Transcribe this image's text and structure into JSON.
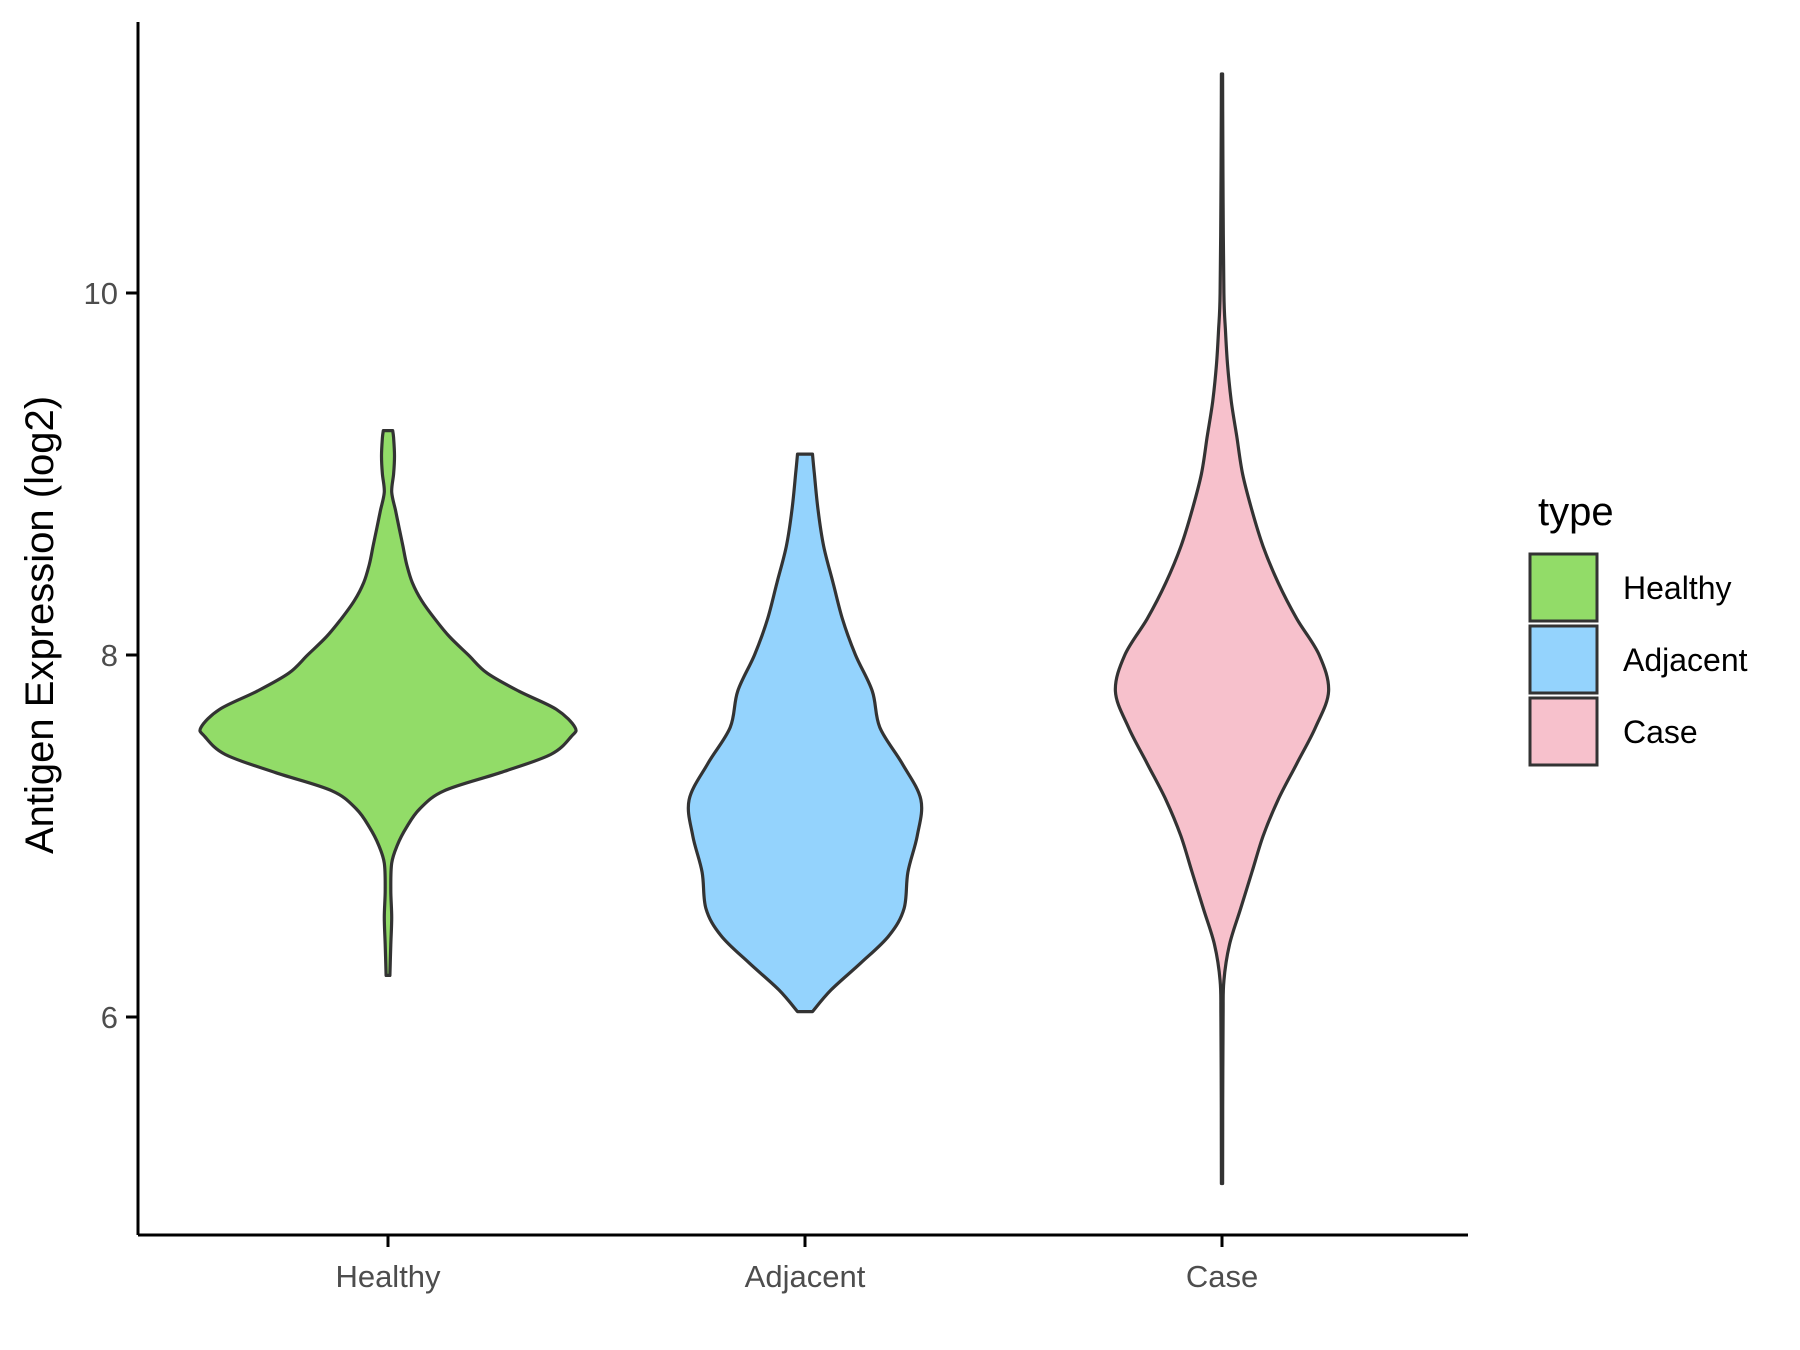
{
  "chart_data": {
    "type": "violin",
    "title": "",
    "xlabel": "",
    "ylabel": "Antigen Expression (log2)",
    "ylim": [
      5.0,
      11.4
    ],
    "yticks": [
      6,
      8,
      10
    ],
    "categories": [
      "Healthy",
      "Adjacent",
      "Case"
    ],
    "colors": {
      "Healthy": "#92dc68",
      "Adjacent": "#94d3fd",
      "Case": "#f7c1cc"
    },
    "legend": {
      "title": "type",
      "position": "right",
      "entries": [
        "Healthy",
        "Adjacent",
        "Case"
      ]
    },
    "grid": false,
    "series": [
      {
        "name": "Healthy",
        "min": 6.23,
        "max": 9.24,
        "density_profile": [
          [
            6.23,
            0.01
          ],
          [
            6.4,
            0.015
          ],
          [
            6.55,
            0.02
          ],
          [
            6.7,
            0.015
          ],
          [
            6.85,
            0.02
          ],
          [
            6.95,
            0.05
          ],
          [
            7.05,
            0.1
          ],
          [
            7.15,
            0.17
          ],
          [
            7.25,
            0.3
          ],
          [
            7.35,
            0.6
          ],
          [
            7.45,
            0.87
          ],
          [
            7.55,
            0.98
          ],
          [
            7.6,
            1.0
          ],
          [
            7.7,
            0.9
          ],
          [
            7.8,
            0.7
          ],
          [
            7.9,
            0.53
          ],
          [
            8.0,
            0.43
          ],
          [
            8.1,
            0.33
          ],
          [
            8.2,
            0.25
          ],
          [
            8.3,
            0.18
          ],
          [
            8.4,
            0.13
          ],
          [
            8.5,
            0.1
          ],
          [
            8.6,
            0.08
          ],
          [
            8.7,
            0.06
          ],
          [
            8.8,
            0.04
          ],
          [
            8.9,
            0.02
          ],
          [
            9.0,
            0.03
          ],
          [
            9.1,
            0.035
          ],
          [
            9.2,
            0.03
          ],
          [
            9.24,
            0.025
          ]
        ]
      },
      {
        "name": "Adjacent",
        "min": 6.03,
        "max": 9.11,
        "density_profile": [
          [
            6.03,
            0.04
          ],
          [
            6.15,
            0.14
          ],
          [
            6.3,
            0.3
          ],
          [
            6.45,
            0.45
          ],
          [
            6.6,
            0.53
          ],
          [
            6.8,
            0.55
          ],
          [
            7.0,
            0.6
          ],
          [
            7.2,
            0.62
          ],
          [
            7.4,
            0.52
          ],
          [
            7.6,
            0.4
          ],
          [
            7.8,
            0.36
          ],
          [
            8.0,
            0.27
          ],
          [
            8.2,
            0.2
          ],
          [
            8.4,
            0.15
          ],
          [
            8.6,
            0.1
          ],
          [
            8.8,
            0.07
          ],
          [
            9.0,
            0.05
          ],
          [
            9.11,
            0.04
          ]
        ]
      },
      {
        "name": "Case",
        "min": 5.08,
        "max": 11.21,
        "density_profile": [
          [
            5.08,
            0.003
          ],
          [
            5.5,
            0.004
          ],
          [
            6.0,
            0.006
          ],
          [
            6.2,
            0.01
          ],
          [
            6.4,
            0.04
          ],
          [
            6.6,
            0.1
          ],
          [
            6.8,
            0.16
          ],
          [
            7.0,
            0.22
          ],
          [
            7.2,
            0.3
          ],
          [
            7.4,
            0.4
          ],
          [
            7.6,
            0.5
          ],
          [
            7.8,
            0.57
          ],
          [
            8.0,
            0.52
          ],
          [
            8.2,
            0.4
          ],
          [
            8.4,
            0.3
          ],
          [
            8.6,
            0.22
          ],
          [
            8.8,
            0.16
          ],
          [
            9.0,
            0.11
          ],
          [
            9.2,
            0.08
          ],
          [
            9.4,
            0.05
          ],
          [
            9.6,
            0.03
          ],
          [
            9.8,
            0.018
          ],
          [
            10.0,
            0.01
          ],
          [
            10.5,
            0.006
          ],
          [
            11.0,
            0.004
          ],
          [
            11.21,
            0.003
          ]
        ]
      }
    ]
  }
}
